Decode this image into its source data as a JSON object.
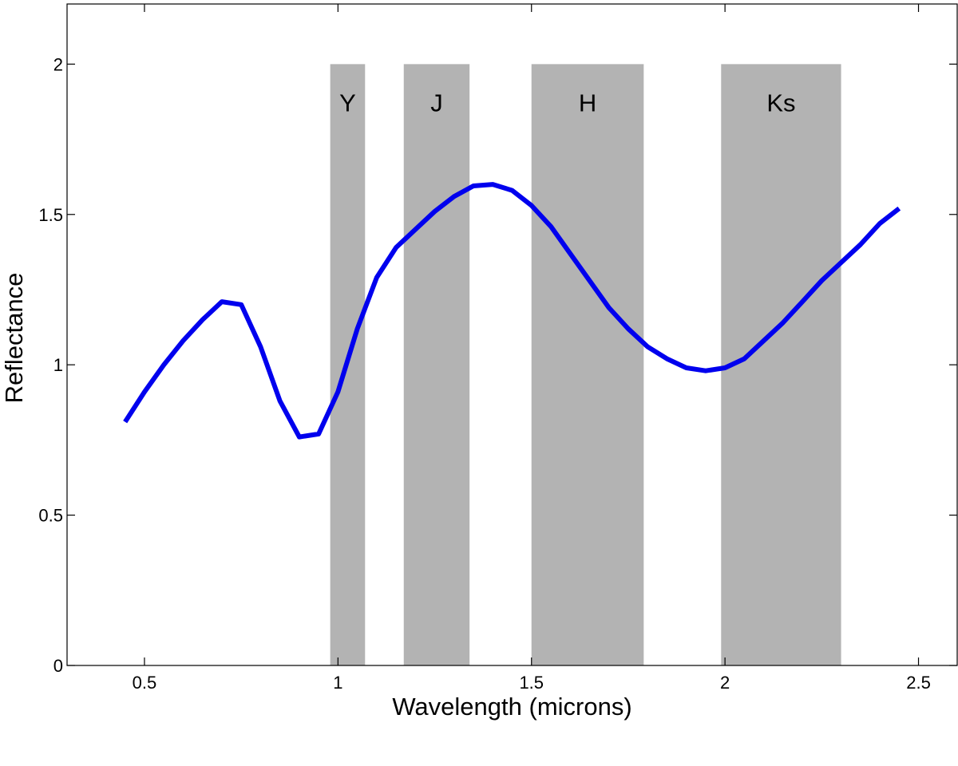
{
  "chart_data": {
    "type": "line",
    "xlabel": "Wavelength (microns)",
    "ylabel": "Reflectance",
    "xlim": [
      0.3,
      2.6
    ],
    "ylim": [
      0,
      2.2
    ],
    "xticks": [
      {
        "value": 0.5,
        "label": "0.5"
      },
      {
        "value": 1.0,
        "label": "1"
      },
      {
        "value": 1.5,
        "label": "1.5"
      },
      {
        "value": 2.0,
        "label": "2"
      },
      {
        "value": 2.5,
        "label": "2.5"
      }
    ],
    "yticks": [
      {
        "value": 0,
        "label": "0"
      },
      {
        "value": 0.5,
        "label": "0.5"
      },
      {
        "value": 1.0,
        "label": "1"
      },
      {
        "value": 1.5,
        "label": "1.5"
      },
      {
        "value": 2.0,
        "label": "2"
      }
    ],
    "grid": false,
    "bands": [
      {
        "label": "Y",
        "x0": 0.98,
        "x1": 1.07,
        "y0": 0,
        "y1": 2.0
      },
      {
        "label": "J",
        "x0": 1.17,
        "x1": 1.34,
        "y0": 0,
        "y1": 2.0
      },
      {
        "label": "H",
        "x0": 1.5,
        "x1": 1.79,
        "y0": 0,
        "y1": 2.0
      },
      {
        "label": "Ks",
        "x0": 1.99,
        "x1": 2.3,
        "y0": 0,
        "y1": 2.0
      }
    ],
    "series": [
      {
        "color": "#0000ee",
        "x": [
          0.45,
          0.5,
          0.55,
          0.6,
          0.65,
          0.7,
          0.75,
          0.8,
          0.85,
          0.9,
          0.95,
          1.0,
          1.05,
          1.1,
          1.15,
          1.2,
          1.25,
          1.3,
          1.35,
          1.4,
          1.45,
          1.5,
          1.55,
          1.6,
          1.65,
          1.7,
          1.75,
          1.8,
          1.85,
          1.9,
          1.95,
          2.0,
          2.05,
          2.1,
          2.15,
          2.2,
          2.25,
          2.3,
          2.35,
          2.4,
          2.45
        ],
        "y": [
          0.81,
          0.91,
          1.0,
          1.08,
          1.15,
          1.21,
          1.2,
          1.06,
          0.88,
          0.76,
          0.77,
          0.91,
          1.12,
          1.29,
          1.39,
          1.45,
          1.51,
          1.56,
          1.595,
          1.6,
          1.58,
          1.53,
          1.46,
          1.37,
          1.28,
          1.19,
          1.12,
          1.06,
          1.02,
          0.99,
          0.98,
          0.99,
          1.02,
          1.08,
          1.14,
          1.21,
          1.28,
          1.34,
          1.4,
          1.47,
          1.52
        ]
      }
    ],
    "colors": {
      "band_fill": "#b3b3b3",
      "axis": "#000000"
    }
  }
}
